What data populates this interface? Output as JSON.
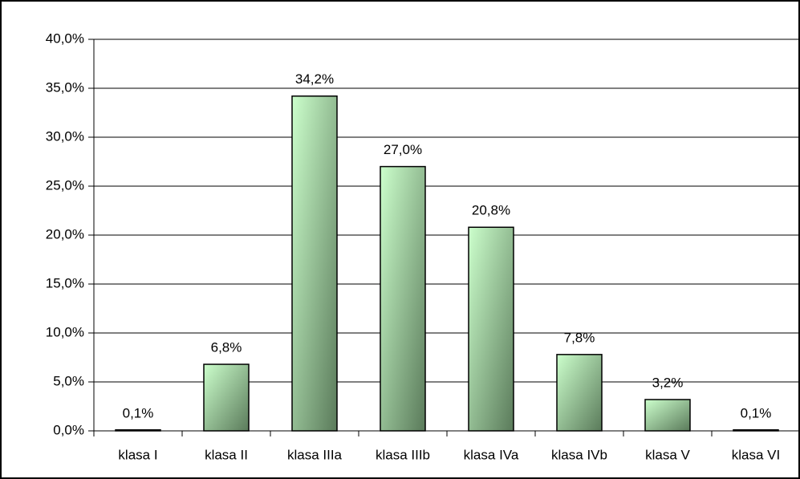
{
  "chart_data": {
    "type": "bar",
    "categories": [
      "klasa I",
      "klasa II",
      "klasa IIIa",
      "klasa IIIb",
      "klasa IVa",
      "klasa IVb",
      "klasa V",
      "klasa VI"
    ],
    "values": [
      0.1,
      6.8,
      34.2,
      27.0,
      20.8,
      7.8,
      3.2,
      0.1
    ],
    "value_labels": [
      "0,1%",
      "6,8%",
      "34,2%",
      "27,0%",
      "20,8%",
      "7,8%",
      "3,2%",
      "0,1%"
    ],
    "color": [
      "#ccffcc",
      "#5a7a5a"
    ],
    "ylim": [
      0,
      40
    ],
    "yticks": [
      {
        "value": 0,
        "label": "0,0%"
      },
      {
        "value": 5,
        "label": "5,0%"
      },
      {
        "value": 10,
        "label": "10,0%"
      },
      {
        "value": 15,
        "label": "15,0%"
      },
      {
        "value": 20,
        "label": "20,0%"
      },
      {
        "value": 25,
        "label": "25,0%"
      },
      {
        "value": 30,
        "label": "30,0%"
      },
      {
        "value": 35,
        "label": "35,0%"
      },
      {
        "value": 40,
        "label": "40,0%"
      }
    ],
    "grid": true
  }
}
